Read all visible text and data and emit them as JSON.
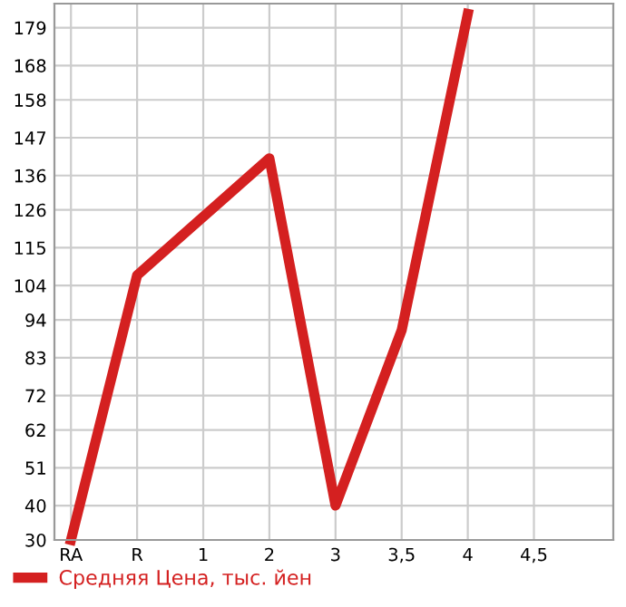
{
  "chart_data": {
    "type": "line",
    "categories": [
      "RA",
      "R",
      "1",
      "2",
      "3",
      "3,5",
      "4",
      "4,5"
    ],
    "series": [
      {
        "name": "Средняя Цена, тыс. йен",
        "color": "#d42020",
        "values": [
          30,
          107,
          null,
          141,
          40,
          91,
          183,
          null
        ]
      }
    ],
    "ylim": [
      30,
      186
    ],
    "yticks": [
      30,
      40,
      51,
      62,
      72,
      83,
      94,
      104,
      115,
      126,
      136,
      147,
      158,
      168,
      179
    ],
    "grid": true,
    "legend": "bottom",
    "marker": "none",
    "line_style": "solid"
  }
}
